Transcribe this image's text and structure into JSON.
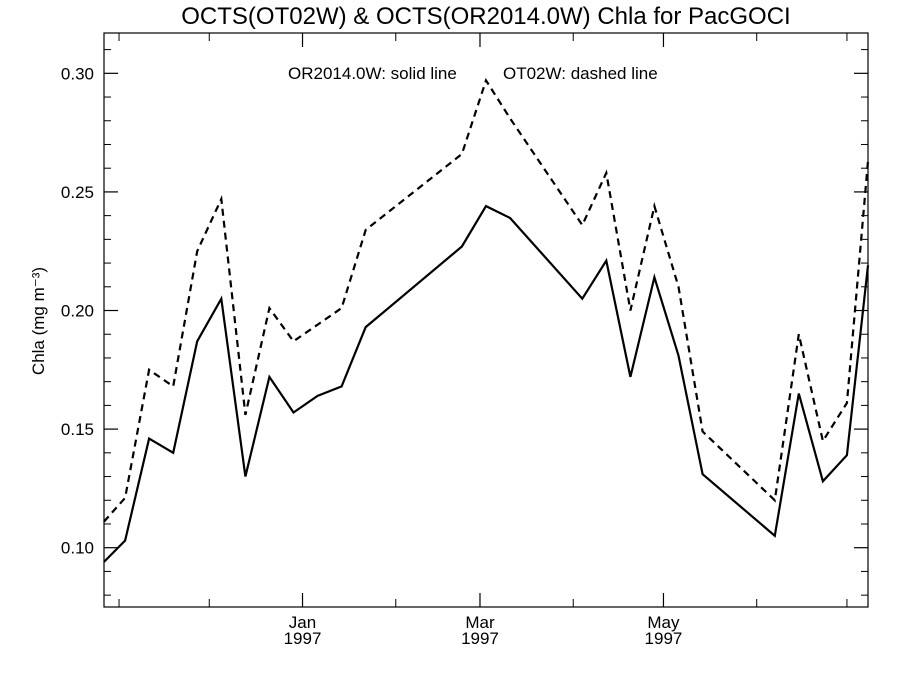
{
  "chart_data": {
    "type": "line",
    "title": "OCTS(OT02W) & OCTS(OR2014.0W)  Chla for PacGOCI",
    "ylabel": "Chla (mg m⁻³)",
    "annotation_solid": "OR2014.0W: solid line",
    "annotation_dashed": "OT02W: dashed line",
    "ylim": [
      0.075,
      0.317
    ],
    "yticks": [
      0.1,
      0.15,
      0.2,
      0.25,
      0.3
    ],
    "ytick_labels": [
      "0.10",
      "0.15",
      "0.20",
      "0.25",
      "0.30"
    ],
    "xlim": [
      "1996-10-27",
      "1997-07-08"
    ],
    "xticks": [
      {
        "date": "1997-01-01",
        "month": "Jan",
        "year": "1997"
      },
      {
        "date": "1997-03-01",
        "month": "Mar",
        "year": "1997"
      },
      {
        "date": "1997-05-01",
        "month": "May",
        "year": "1997"
      }
    ],
    "grid": false,
    "series": [
      {
        "name": "OR2014.0W",
        "style": "solid",
        "color": "#000000",
        "points": [
          {
            "x": "1996-10-27",
            "y": 0.094
          },
          {
            "x": "1996-11-03",
            "y": 0.103
          },
          {
            "x": "1996-11-11",
            "y": 0.146
          },
          {
            "x": "1996-11-19",
            "y": 0.14
          },
          {
            "x": "1996-11-27",
            "y": 0.187
          },
          {
            "x": "1996-12-05",
            "y": 0.205
          },
          {
            "x": "1996-12-13",
            "y": 0.13
          },
          {
            "x": "1996-12-21",
            "y": 0.172
          },
          {
            "x": "1996-12-29",
            "y": 0.157
          },
          {
            "x": "1997-01-06",
            "y": 0.164
          },
          {
            "x": "1997-01-14",
            "y": 0.168
          },
          {
            "x": "1997-01-22",
            "y": 0.193
          },
          {
            "x": "1997-02-23",
            "y": 0.227
          },
          {
            "x": "1997-03-03",
            "y": 0.244
          },
          {
            "x": "1997-03-11",
            "y": 0.239
          },
          {
            "x": "1997-04-04",
            "y": 0.205
          },
          {
            "x": "1997-04-12",
            "y": 0.221
          },
          {
            "x": "1997-04-20",
            "y": 0.172
          },
          {
            "x": "1997-04-28",
            "y": 0.214
          },
          {
            "x": "1997-05-06",
            "y": 0.181
          },
          {
            "x": "1997-05-14",
            "y": 0.131
          },
          {
            "x": "1997-06-07",
            "y": 0.105
          },
          {
            "x": "1997-06-15",
            "y": 0.165
          },
          {
            "x": "1997-06-23",
            "y": 0.128
          },
          {
            "x": "1997-07-01",
            "y": 0.139
          },
          {
            "x": "1997-07-08",
            "y": 0.219
          }
        ]
      },
      {
        "name": "OT02W",
        "style": "dashed",
        "color": "#000000",
        "points": [
          {
            "x": "1996-10-27",
            "y": 0.111
          },
          {
            "x": "1996-11-03",
            "y": 0.121
          },
          {
            "x": "1996-11-11",
            "y": 0.175
          },
          {
            "x": "1996-11-19",
            "y": 0.168
          },
          {
            "x": "1996-11-27",
            "y": 0.225
          },
          {
            "x": "1996-12-05",
            "y": 0.247
          },
          {
            "x": "1996-12-13",
            "y": 0.156
          },
          {
            "x": "1996-12-21",
            "y": 0.201
          },
          {
            "x": "1996-12-29",
            "y": 0.187
          },
          {
            "x": "1997-01-14",
            "y": 0.201
          },
          {
            "x": "1997-01-22",
            "y": 0.234
          },
          {
            "x": "1997-02-23",
            "y": 0.266
          },
          {
            "x": "1997-03-03",
            "y": 0.297
          },
          {
            "x": "1997-03-11",
            "y": 0.281
          },
          {
            "x": "1997-04-04",
            "y": 0.236
          },
          {
            "x": "1997-04-12",
            "y": 0.258
          },
          {
            "x": "1997-04-20",
            "y": 0.2
          },
          {
            "x": "1997-04-28",
            "y": 0.244
          },
          {
            "x": "1997-05-06",
            "y": 0.21
          },
          {
            "x": "1997-05-14",
            "y": 0.149
          },
          {
            "x": "1997-06-07",
            "y": 0.12
          },
          {
            "x": "1997-06-15",
            "y": 0.19
          },
          {
            "x": "1997-06-23",
            "y": 0.145
          },
          {
            "x": "1997-07-01",
            "y": 0.161
          },
          {
            "x": "1997-07-08",
            "y": 0.263
          }
        ]
      }
    ]
  }
}
